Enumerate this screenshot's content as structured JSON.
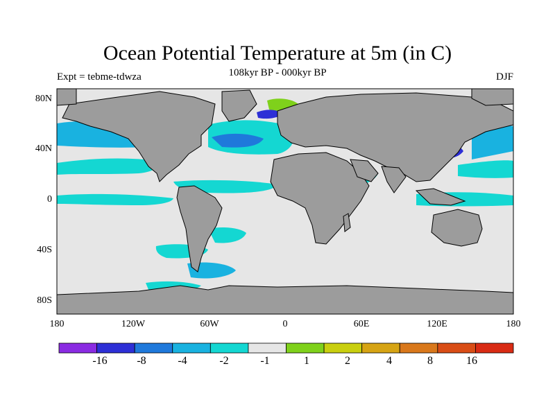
{
  "header": {
    "title": "Ocean Potential Temperature at 5m (in C)",
    "subtitle": "108kyr BP - 000kyr BP",
    "left_label": "Expt = tebme-tdwza",
    "right_label": "DJF"
  },
  "map": {
    "lon_range": [
      -180,
      180
    ],
    "lat_range": [
      -90,
      90
    ],
    "y_ticks": [
      "80N",
      "40N",
      "0",
      "40S",
      "80S"
    ],
    "x_ticks": [
      "180",
      "120W",
      "60W",
      "0",
      "60E",
      "120E",
      "180"
    ]
  },
  "colorbar": {
    "colors": [
      "#8a2be2",
      "#2d2fd6",
      "#1f79db",
      "#19b2e0",
      "#14d7d2",
      "#e6e6e6",
      "#7fd11b",
      "#c9cf0f",
      "#d6a414",
      "#d9781b",
      "#d94d16",
      "#d92b14"
    ],
    "labels": [
      "-16",
      "-8",
      "-4",
      "-2",
      "-1",
      "1",
      "2",
      "4",
      "8",
      "16"
    ]
  },
  "colors": {
    "land": "#9c9c9c",
    "ocean_neutral": "#e6e6e6",
    "coast": "#000000"
  }
}
